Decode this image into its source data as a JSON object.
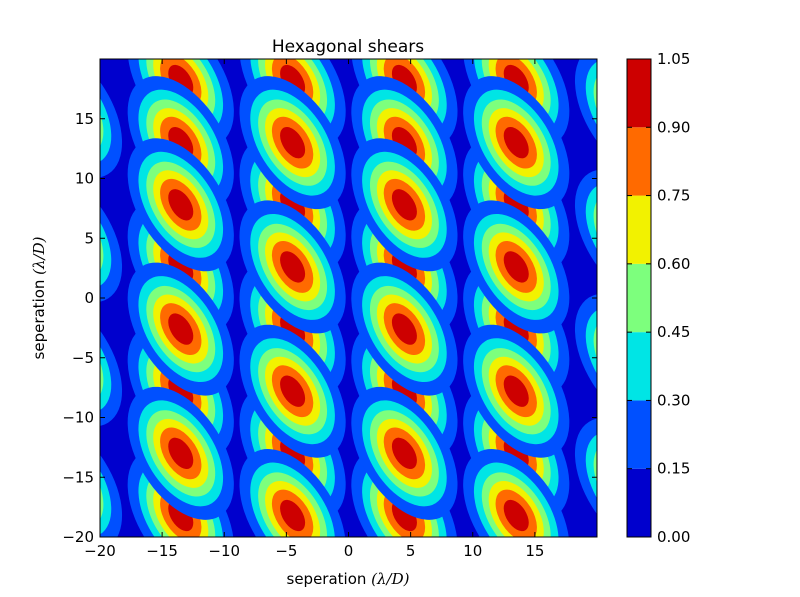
{
  "chart_data": {
    "type": "heatmap",
    "subtype": "filled-contour",
    "title": "Hexagonal shears",
    "xlabel": {
      "text": "seperation ",
      "math": "(λ/D)"
    },
    "ylabel": {
      "text": "seperation ",
      "math": "(λ/D)"
    },
    "xlim": [
      -20,
      20
    ],
    "ylim": [
      -20,
      20
    ],
    "xticks": [
      -20,
      -15,
      -10,
      -5,
      0,
      5,
      10,
      15
    ],
    "xtick_labels": [
      "−20",
      "−15",
      "−10",
      "−5",
      "0",
      "5",
      "10",
      "15"
    ],
    "yticks": [
      -20,
      -15,
      -10,
      -5,
      0,
      5,
      10,
      15
    ],
    "ytick_labels": [
      "−20",
      "−15",
      "−10",
      "−5",
      "0",
      "5",
      "10",
      "15"
    ],
    "grid": false,
    "levels": [
      0.0,
      0.15,
      0.3,
      0.45,
      0.6,
      0.75,
      0.9,
      1.05
    ],
    "level_labels": [
      "0.00",
      "0.15",
      "0.30",
      "0.45",
      "0.60",
      "0.75",
      "0.90",
      "1.05"
    ],
    "level_colors": [
      "#0000cd",
      "#0050ff",
      "#00e5e5",
      "#7dff7d",
      "#f2f200",
      "#ff6a00",
      "#cd0000"
    ],
    "colorbar": "right",
    "peak_value": 1.0,
    "peaks": [
      {
        "x": -13.5,
        "y": 18.2
      },
      {
        "x": -4.5,
        "y": 18.2
      },
      {
        "x": 4.5,
        "y": 18.2
      },
      {
        "x": 13.5,
        "y": 18.2
      },
      {
        "x": -13.5,
        "y": 13.0
      },
      {
        "x": -4.5,
        "y": 7.8
      },
      {
        "x": 4.5,
        "y": 13.0
      },
      {
        "x": 13.5,
        "y": 7.8
      },
      {
        "x": -13.5,
        "y": 2.6
      },
      {
        "x": -4.5,
        "y": -2.6
      },
      {
        "x": 4.5,
        "y": 2.6
      },
      {
        "x": 13.5,
        "y": -2.6
      },
      {
        "x": -13.5,
        "y": -7.8
      },
      {
        "x": -4.5,
        "y": -13.0
      },
      {
        "x": 4.5,
        "y": -7.8
      },
      {
        "x": 13.5,
        "y": -13.0
      },
      {
        "x": -13.5,
        "y": -18.2
      },
      {
        "x": 4.5,
        "y": -18.2
      },
      {
        "x": -4.5,
        "y": 13.0
      },
      {
        "x": 13.5,
        "y": 13.0
      },
      {
        "x": -4.5,
        "y": -7.8
      },
      {
        "x": 13.5,
        "y": -7.8
      },
      {
        "x": 4.5,
        "y": 7.8
      },
      {
        "x": -13.5,
        "y": -2.6
      },
      {
        "x": 4.5,
        "y": -2.6
      },
      {
        "x": -13.5,
        "y": 7.8
      },
      {
        "x": 4.5,
        "y": -13.0
      },
      {
        "x": -13.5,
        "y": -13.0
      },
      {
        "x": -4.5,
        "y": 2.6
      },
      {
        "x": 13.5,
        "y": 2.6
      },
      {
        "x": -4.5,
        "y": -18.2
      },
      {
        "x": 13.5,
        "y": -18.2
      },
      {
        "x": -22.5,
        "y": 15.6
      },
      {
        "x": 22.5,
        "y": 15.6
      },
      {
        "x": -22.5,
        "y": 5.2
      },
      {
        "x": 22.5,
        "y": 5.2
      },
      {
        "x": -22.5,
        "y": -5.2
      },
      {
        "x": 22.5,
        "y": -5.2
      },
      {
        "x": -22.5,
        "y": -15.6
      },
      {
        "x": 22.5,
        "y": -15.6
      }
    ]
  }
}
